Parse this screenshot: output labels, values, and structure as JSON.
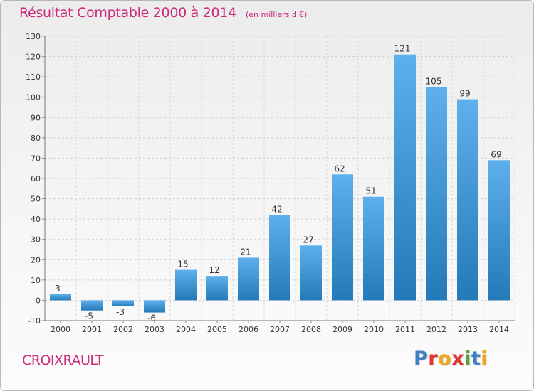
{
  "header": {
    "title": "Résultat Comptable 2000 à 2014",
    "subtitle": "(en milliers d'€)"
  },
  "footer": {
    "commune": "CROIXRAULT",
    "logo_letters": [
      {
        "ch": "P",
        "color": "#3b7fc4"
      },
      {
        "ch": "r",
        "color": "#e3342f"
      },
      {
        "ch": "o",
        "color": "#f2a51a"
      },
      {
        "ch": "x",
        "color": "#e3342f"
      },
      {
        "ch": "i",
        "color": "#55a630"
      },
      {
        "ch": "t",
        "color": "#3b7fc4"
      },
      {
        "ch": "i",
        "color": "#f2a51a"
      }
    ]
  },
  "colors": {
    "bar_top": "#5eb0ec",
    "bar_bottom": "#2479b8",
    "accent": "#cc2a7a"
  },
  "chart_data": {
    "type": "bar",
    "title": "Résultat Comptable 2000 à 2014",
    "subtitle": "(en milliers d'€)",
    "categories": [
      "2000",
      "2001",
      "2002",
      "2003",
      "2004",
      "2005",
      "2006",
      "2007",
      "2008",
      "2009",
      "2010",
      "2011",
      "2012",
      "2013",
      "2014"
    ],
    "values": [
      3,
      -5,
      -3,
      -6,
      15,
      12,
      21,
      42,
      27,
      62,
      51,
      121,
      105,
      99,
      69
    ],
    "ylim": [
      -10,
      130
    ],
    "yticks": [
      -10,
      0,
      10,
      20,
      30,
      40,
      50,
      60,
      70,
      80,
      90,
      100,
      110,
      120,
      130
    ],
    "grid": true,
    "legend": "none"
  }
}
